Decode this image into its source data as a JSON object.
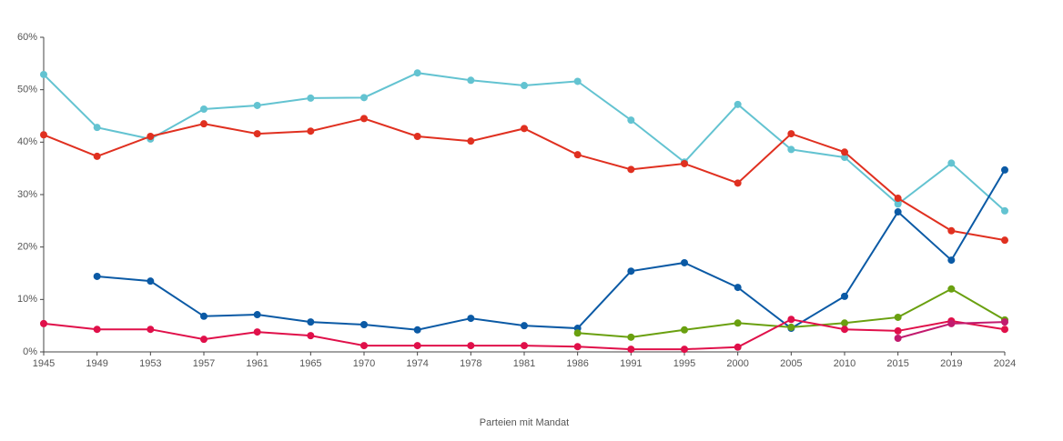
{
  "chart_data": {
    "type": "line",
    "x_label": "Parteien mit Mandat",
    "categories": [
      "1945",
      "1949",
      "1953",
      "1957",
      "1961",
      "1965",
      "1970",
      "1974",
      "1978",
      "1981",
      "1986",
      "1991",
      "1995",
      "2000",
      "2005",
      "2010",
      "2015",
      "2019",
      "2024"
    ],
    "series": [
      {
        "color": "#63c3d1",
        "values": [
          52.9,
          42.8,
          40.6,
          46.3,
          47.0,
          48.4,
          48.5,
          53.2,
          51.8,
          50.8,
          51.6,
          44.2,
          36.2,
          47.2,
          38.6,
          37.1,
          28.2,
          36.0,
          26.9
        ]
      },
      {
        "color": "#e03020",
        "values": [
          41.4,
          37.3,
          41.1,
          43.5,
          41.6,
          42.1,
          44.5,
          41.1,
          40.2,
          42.6,
          37.6,
          34.8,
          35.9,
          32.2,
          41.6,
          38.1,
          29.3,
          23.1,
          21.3
        ]
      },
      {
        "color": "#0b5aa5",
        "values": [
          null,
          14.4,
          13.5,
          6.8,
          7.1,
          5.7,
          5.2,
          4.2,
          6.4,
          5.0,
          4.5,
          15.4,
          17.0,
          12.3,
          4.5,
          10.6,
          26.7,
          17.5,
          34.7
        ]
      },
      {
        "color": "#6aa010",
        "values": [
          null,
          null,
          null,
          null,
          null,
          null,
          null,
          null,
          null,
          null,
          3.6,
          2.8,
          4.2,
          5.5,
          4.7,
          5.5,
          6.6,
          12.0,
          6.1
        ]
      },
      {
        "color": "#e0104a",
        "values": [
          5.4,
          4.3,
          4.3,
          2.4,
          3.8,
          3.1,
          1.2,
          1.2,
          1.2,
          1.2,
          1.0,
          0.5,
          0.5,
          0.9,
          6.2,
          4.3,
          4.0,
          5.9,
          4.3
        ]
      },
      {
        "color": "#c21a6e",
        "values": [
          null,
          null,
          null,
          null,
          null,
          null,
          null,
          null,
          null,
          null,
          null,
          null,
          null,
          null,
          null,
          null,
          2.6,
          5.4,
          5.7
        ]
      }
    ],
    "ylim": [
      0,
      60
    ],
    "yticks": [
      {
        "value": 0,
        "label": "0%"
      },
      {
        "value": 10,
        "label": "10%"
      },
      {
        "value": 20,
        "label": "20%"
      },
      {
        "value": 30,
        "label": "30%"
      },
      {
        "value": 40,
        "label": "40%"
      },
      {
        "value": 50,
        "label": "50%"
      },
      {
        "value": 60,
        "label": "60%"
      }
    ]
  }
}
